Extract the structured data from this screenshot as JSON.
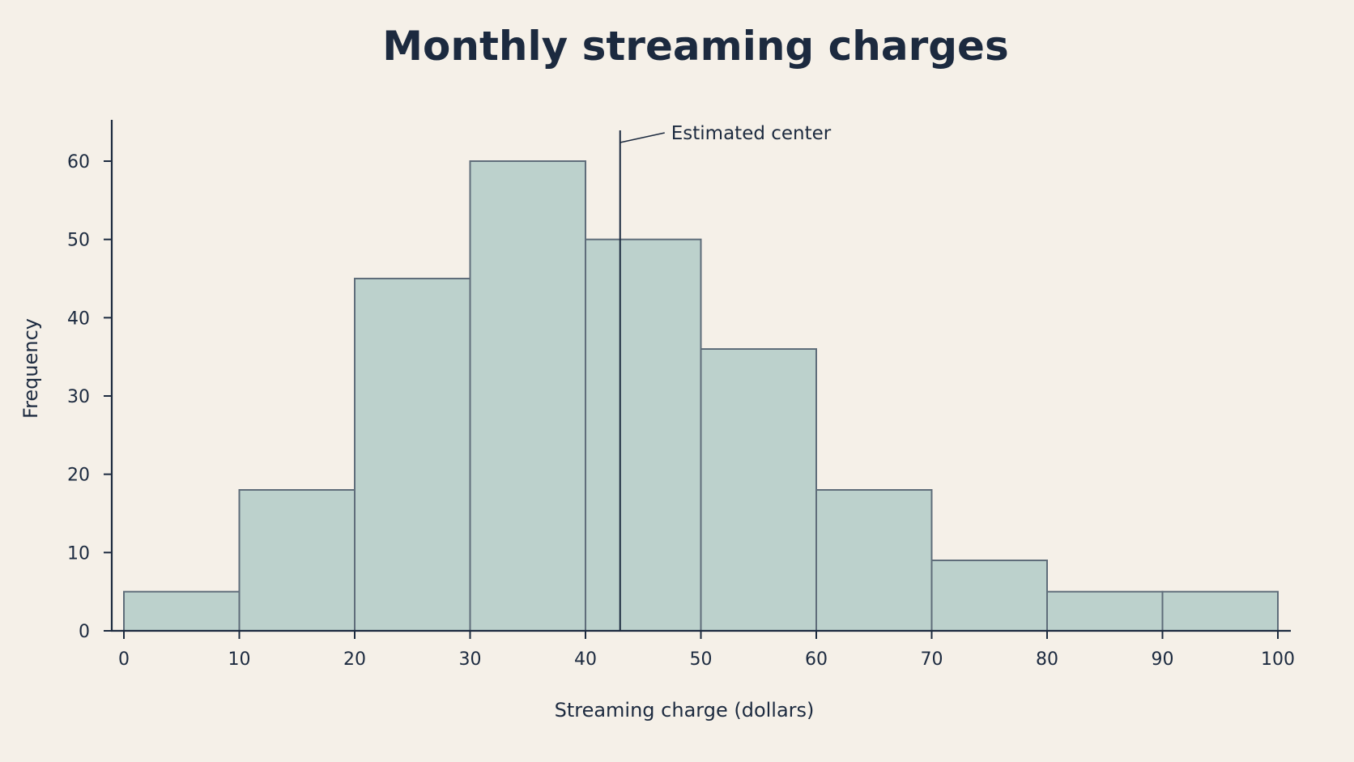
{
  "colors": {
    "background": "#f5f0e8",
    "bar_fill": "#bcd1cc",
    "bar_stroke": "#5f6d7a",
    "text": "#1c2a3f"
  },
  "chart_data": {
    "type": "bar",
    "subtype": "histogram",
    "title": "Monthly streaming charges",
    "xlabel": "Streaming charge (dollars)",
    "ylabel": "Frequency",
    "bins": [
      {
        "start": 0,
        "end": 10,
        "count": 5
      },
      {
        "start": 10,
        "end": 20,
        "count": 18
      },
      {
        "start": 20,
        "end": 30,
        "count": 45
      },
      {
        "start": 30,
        "end": 40,
        "count": 60
      },
      {
        "start": 40,
        "end": 50,
        "count": 50
      },
      {
        "start": 50,
        "end": 60,
        "count": 36
      },
      {
        "start": 60,
        "end": 70,
        "count": 18
      },
      {
        "start": 70,
        "end": 80,
        "count": 9
      },
      {
        "start": 80,
        "end": 90,
        "count": 5
      },
      {
        "start": 90,
        "end": 100,
        "count": 5
      }
    ],
    "xlim": [
      0,
      100
    ],
    "ylim": [
      0,
      65
    ],
    "x_ticks": [
      "0",
      "10",
      "20",
      "30",
      "40",
      "50",
      "60",
      "70",
      "80",
      "90",
      "100"
    ],
    "y_ticks": [
      "0",
      "10",
      "20",
      "30",
      "40",
      "50",
      "60"
    ],
    "grid": false,
    "annotations": [
      {
        "type": "vertical_line",
        "x": 43,
        "label": "Estimated center"
      }
    ]
  }
}
